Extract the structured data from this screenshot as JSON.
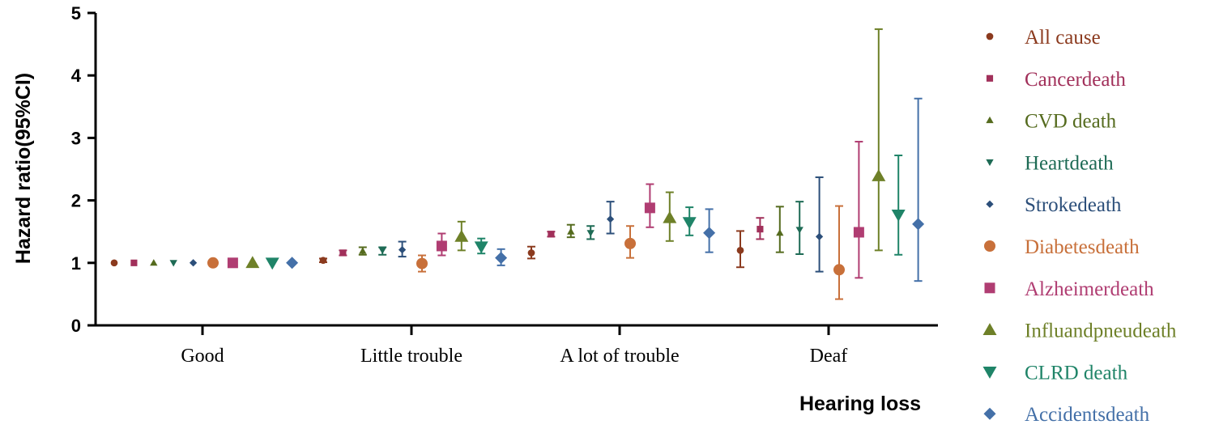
{
  "chart_data": {
    "type": "scatter",
    "categories": [
      "Good",
      "Little trouble",
      "A lot of trouble",
      "Deaf"
    ],
    "xlabel": "Hearing loss",
    "ylabel": "Hazard ratio(95%CI)",
    "ylim": [
      0,
      5
    ],
    "yticks": [
      "0",
      "1",
      "2",
      "3",
      "4",
      "5"
    ],
    "grid": false,
    "legend_position": "right",
    "series": [
      {
        "name": "All cause",
        "color": "#8B3A1E",
        "marker": "circle",
        "size": "small",
        "values": [
          [
            1.0,
            1.0,
            1.0
          ],
          [
            1.04,
            1.01,
            1.07
          ],
          [
            1.16,
            1.07,
            1.26
          ],
          [
            1.2,
            0.93,
            1.51
          ]
        ]
      },
      {
        "name": "Cancerdeath",
        "color": "#A1305A",
        "marker": "square",
        "size": "small",
        "values": [
          [
            1.0,
            1.0,
            1.0
          ],
          [
            1.16,
            1.12,
            1.2
          ],
          [
            1.46,
            1.42,
            1.5
          ],
          [
            1.54,
            1.38,
            1.72
          ]
        ]
      },
      {
        "name": "CVD death",
        "color": "#556B1E",
        "marker": "triangle-up",
        "size": "small",
        "values": [
          [
            1.0,
            1.0,
            1.0
          ],
          [
            1.19,
            1.13,
            1.25
          ],
          [
            1.5,
            1.41,
            1.61
          ],
          [
            1.48,
            1.17,
            1.9
          ]
        ]
      },
      {
        "name": "Heartdeath",
        "color": "#1E6B55",
        "marker": "triangle-down",
        "size": "small",
        "values": [
          [
            1.0,
            1.0,
            1.0
          ],
          [
            1.2,
            1.13,
            1.25
          ],
          [
            1.48,
            1.38,
            1.59
          ],
          [
            1.53,
            1.14,
            1.98
          ]
        ]
      },
      {
        "name": "Strokedeath",
        "color": "#2C4F7A",
        "marker": "diamond",
        "size": "small",
        "values": [
          [
            1.0,
            1.0,
            1.0
          ],
          [
            1.21,
            1.1,
            1.34
          ],
          [
            1.7,
            1.47,
            1.98
          ],
          [
            1.42,
            0.86,
            2.37
          ]
        ]
      },
      {
        "name": "Diabetesdeath",
        "color": "#C8703A",
        "marker": "circle",
        "size": "large",
        "values": [
          [
            1.0,
            1.0,
            1.0
          ],
          [
            0.99,
            0.86,
            1.12
          ],
          [
            1.31,
            1.08,
            1.59
          ],
          [
            0.89,
            0.42,
            1.91
          ]
        ]
      },
      {
        "name": "Alzheimerdeath",
        "color": "#B03D72",
        "marker": "square",
        "size": "large",
        "values": [
          [
            1.0,
            1.0,
            1.0
          ],
          [
            1.27,
            1.12,
            1.47
          ],
          [
            1.88,
            1.57,
            2.26
          ],
          [
            1.49,
            0.76,
            2.94
          ]
        ]
      },
      {
        "name": "Influandpneudeath",
        "color": "#6E8028",
        "marker": "triangle-up",
        "size": "large",
        "values": [
          [
            1.0,
            1.0,
            1.0
          ],
          [
            1.42,
            1.2,
            1.66
          ],
          [
            1.72,
            1.35,
            2.13
          ],
          [
            2.39,
            1.2,
            4.74
          ]
        ]
      },
      {
        "name": "CLRD death",
        "color": "#1F8468",
        "marker": "triangle-down",
        "size": "large",
        "values": [
          [
            1.0,
            1.0,
            1.0
          ],
          [
            1.26,
            1.15,
            1.39
          ],
          [
            1.65,
            1.44,
            1.89
          ],
          [
            1.77,
            1.13,
            2.72
          ]
        ]
      },
      {
        "name": "Accidentsdeath",
        "color": "#4470A8",
        "marker": "diamond",
        "size": "large",
        "values": [
          [
            1.0,
            1.0,
            1.0
          ],
          [
            1.08,
            0.96,
            1.22
          ],
          [
            1.48,
            1.17,
            1.86
          ],
          [
            1.62,
            0.71,
            3.63
          ]
        ]
      }
    ]
  }
}
